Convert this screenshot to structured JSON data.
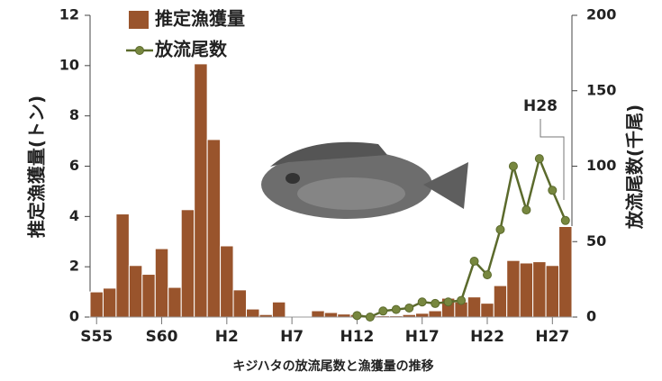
{
  "chart_data": {
    "type": "bar",
    "xlabel": "キジハタの放流尾数と漁獲量の推移",
    "ylabel": "推定漁獲量(トン)",
    "y2label": "放流尾数(千尾)",
    "annotation": "H28",
    "categories": [
      "S55",
      null,
      null,
      null,
      null,
      "S60",
      null,
      null,
      null,
      null,
      "H2",
      null,
      null,
      null,
      null,
      "H7",
      null,
      null,
      null,
      null,
      "H12",
      null,
      null,
      null,
      null,
      "H17",
      null,
      null,
      null,
      null,
      "H22",
      null,
      null,
      null,
      null,
      "H27",
      null
    ],
    "series": [
      {
        "name": "推定漁獲量",
        "color": "#99542c",
        "values": [
          1.0,
          1.15,
          4.1,
          2.05,
          1.7,
          2.72,
          1.18,
          4.27,
          10.07,
          7.06,
          2.83,
          1.08,
          0.32,
          0.1,
          0.6,
          0,
          0,
          0.25,
          0.18,
          0.12,
          0.1,
          0.05,
          0.05,
          0.05,
          0.1,
          0.15,
          0.25,
          0.75,
          0.6,
          0.8,
          0.55,
          1.25,
          2.25,
          2.15,
          2.2,
          2.05,
          3.6
        ]
      },
      {
        "name": "放流尾数",
        "color": "#5b6a2c",
        "type": "line",
        "axis": "y2",
        "values": [
          null,
          null,
          null,
          null,
          null,
          null,
          null,
          null,
          null,
          null,
          null,
          null,
          null,
          null,
          null,
          null,
          null,
          null,
          null,
          null,
          1,
          0,
          4,
          5,
          6,
          10,
          9,
          10,
          11,
          37,
          28,
          58,
          100,
          71,
          105,
          84,
          64
        ]
      }
    ],
    "ylim": [
      0,
      12
    ],
    "yticks": [
      0,
      2,
      4,
      6,
      8,
      10,
      12
    ],
    "y2lim": [
      0,
      200
    ],
    "y2ticks": [
      0,
      50,
      100,
      150,
      200
    ]
  }
}
